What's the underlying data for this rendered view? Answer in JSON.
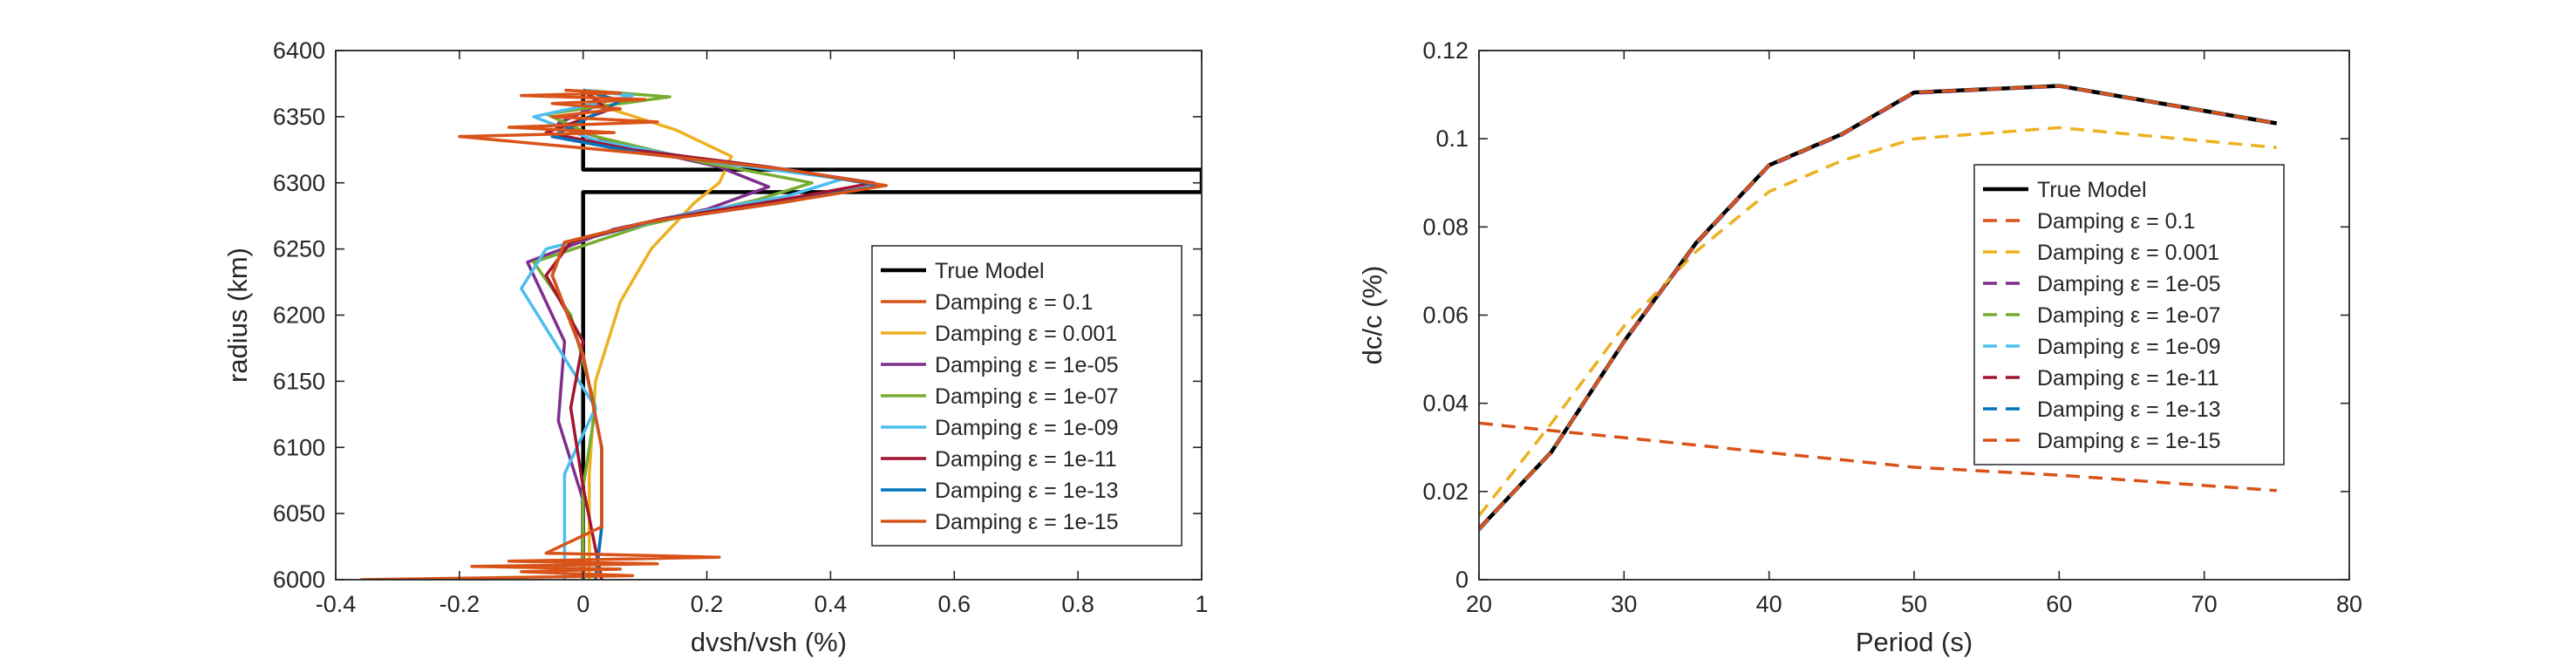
{
  "colors": {
    "black": "#000000",
    "orange": "#D95319",
    "yellow": "#EDB120",
    "purple": "#7E2F8E",
    "green": "#77AC30",
    "cyan": "#4DBEEE",
    "darkred": "#A2142F",
    "blue": "#0072BD"
  },
  "chart_data": [
    {
      "type": "line",
      "xlabel": "dvsh/vsh (%)",
      "ylabel": "radius (km)",
      "xlim": [
        -0.4,
        1
      ],
      "ylim": [
        6000,
        6400
      ],
      "xticks": [
        "-0.4",
        "-0.2",
        "0",
        "0.2",
        "0.4",
        "0.6",
        "0.8",
        "1"
      ],
      "yticks": [
        "6000",
        "6050",
        "6100",
        "6150",
        "6200",
        "6250",
        "6300",
        "6350",
        "6400"
      ],
      "legend_position": "lower-right",
      "grid": false,
      "series": [
        {
          "name": "True Model",
          "color": "black",
          "dash": "solid",
          "points": [
            [
              0,
              6000
            ],
            [
              0,
              6293
            ],
            [
              1,
              6293
            ],
            [
              1,
              6310
            ],
            [
              0,
              6310
            ],
            [
              0,
              6370
            ]
          ]
        },
        {
          "name": "Damping ε = 0.1",
          "color": "orange",
          "dash": "solid",
          "points": [
            [
              0.02,
              6000
            ],
            [
              0.03,
              6040
            ],
            [
              0.03,
              6100
            ],
            [
              0.0,
              6170
            ],
            [
              -0.05,
              6230
            ],
            [
              -0.03,
              6255
            ],
            [
              0.1,
              6270
            ],
            [
              0.32,
              6285
            ],
            [
              0.48,
              6298
            ],
            [
              0.33,
              6310
            ],
            [
              0.1,
              6322
            ],
            [
              -0.05,
              6335
            ],
            [
              0.02,
              6352
            ],
            [
              0.06,
              6362
            ],
            [
              0.0,
              6370
            ]
          ]
        },
        {
          "name": "Damping ε = 0.001",
          "color": "yellow",
          "dash": "solid",
          "points": [
            [
              0.01,
              6000
            ],
            [
              0.01,
              6080
            ],
            [
              0.02,
              6150
            ],
            [
              0.06,
              6210
            ],
            [
              0.11,
              6250
            ],
            [
              0.18,
              6285
            ],
            [
              0.22,
              6300
            ],
            [
              0.24,
              6320
            ],
            [
              0.15,
              6340
            ],
            [
              0.05,
              6355
            ],
            [
              0.0,
              6370
            ]
          ]
        },
        {
          "name": "Damping ε = 1e-05",
          "color": "purple",
          "dash": "solid",
          "points": [
            [
              0.0,
              6000
            ],
            [
              0.0,
              6060
            ],
            [
              -0.04,
              6120
            ],
            [
              -0.03,
              6180
            ],
            [
              -0.09,
              6240
            ],
            [
              0.05,
              6265
            ],
            [
              0.2,
              6280
            ],
            [
              0.3,
              6297
            ],
            [
              0.22,
              6312
            ],
            [
              0.05,
              6330
            ],
            [
              -0.04,
              6345
            ],
            [
              0.03,
              6360
            ],
            [
              0.0,
              6370
            ]
          ]
        },
        {
          "name": "Damping ε = 1e-07",
          "color": "green",
          "dash": "solid",
          "points": [
            [
              0.0,
              6000
            ],
            [
              0.0,
              6070
            ],
            [
              0.02,
              6130
            ],
            [
              -0.02,
              6200
            ],
            [
              -0.08,
              6240
            ],
            [
              0.1,
              6268
            ],
            [
              0.28,
              6287
            ],
            [
              0.37,
              6300
            ],
            [
              0.2,
              6315
            ],
            [
              0.02,
              6335
            ],
            [
              -0.06,
              6352
            ],
            [
              0.14,
              6365
            ],
            [
              0.0,
              6370
            ]
          ]
        },
        {
          "name": "Damping ε = 1e-09",
          "color": "cyan",
          "dash": "solid",
          "points": [
            [
              -0.03,
              6000
            ],
            [
              -0.03,
              6080
            ],
            [
              0.02,
              6130
            ],
            [
              -0.1,
              6220
            ],
            [
              -0.06,
              6250
            ],
            [
              0.15,
              6275
            ],
            [
              0.33,
              6290
            ],
            [
              0.42,
              6303
            ],
            [
              0.22,
              6315
            ],
            [
              0.02,
              6332
            ],
            [
              -0.08,
              6350
            ],
            [
              0.08,
              6366
            ],
            [
              0.0,
              6370
            ]
          ]
        },
        {
          "name": "Damping ε = 1e-11",
          "color": "darkred",
          "dash": "solid",
          "points": [
            [
              0.03,
              6000
            ],
            [
              0.0,
              6070
            ],
            [
              -0.02,
              6130
            ],
            [
              0.0,
              6180
            ],
            [
              -0.06,
              6230
            ],
            [
              -0.02,
              6255
            ],
            [
              0.12,
              6272
            ],
            [
              0.32,
              6287
            ],
            [
              0.47,
              6300
            ],
            [
              0.3,
              6312
            ],
            [
              0.08,
              6325
            ],
            [
              -0.06,
              6338
            ],
            [
              0.04,
              6355
            ],
            [
              0.0,
              6370
            ]
          ]
        },
        {
          "name": "Damping ε = 1e-13",
          "color": "blue",
          "dash": "solid",
          "points": [
            [
              0.02,
              6000
            ],
            [
              0.03,
              6040
            ],
            [
              0.03,
              6100
            ],
            [
              0.0,
              6170
            ],
            [
              -0.05,
              6230
            ],
            [
              -0.03,
              6255
            ],
            [
              0.1,
              6270
            ],
            [
              0.32,
              6285
            ],
            [
              0.48,
              6298
            ],
            [
              0.33,
              6310
            ],
            [
              0.1,
              6322
            ],
            [
              -0.05,
              6335
            ],
            [
              0.02,
              6352
            ],
            [
              0.06,
              6362
            ],
            [
              0.0,
              6370
            ]
          ]
        },
        {
          "name": "Damping ε = 1e-15",
          "color": "orange",
          "dash": "solid",
          "points": [
            [
              -0.36,
              6000
            ],
            [
              0.08,
              6003
            ],
            [
              -0.1,
              6006
            ],
            [
              0.06,
              6008
            ],
            [
              -0.18,
              6010
            ],
            [
              0.12,
              6012
            ],
            [
              -0.12,
              6014
            ],
            [
              0.22,
              6017
            ],
            [
              -0.06,
              6020
            ],
            [
              0.03,
              6040
            ],
            [
              0.03,
              6100
            ],
            [
              0.0,
              6170
            ],
            [
              -0.05,
              6230
            ],
            [
              -0.03,
              6255
            ],
            [
              0.1,
              6270
            ],
            [
              0.32,
              6285
            ],
            [
              0.49,
              6298
            ],
            [
              0.33,
              6310
            ],
            [
              0.1,
              6322
            ],
            [
              -0.2,
              6335
            ],
            [
              0.05,
              6338
            ],
            [
              -0.12,
              6342
            ],
            [
              0.12,
              6346
            ],
            [
              -0.05,
              6350
            ],
            [
              0.06,
              6356
            ],
            [
              -0.05,
              6360
            ],
            [
              0.1,
              6363
            ],
            [
              -0.1,
              6366
            ],
            [
              0.06,
              6368
            ],
            [
              -0.03,
              6370
            ]
          ]
        }
      ]
    },
    {
      "type": "line",
      "xlabel": "Period (s)",
      "ylabel": "dc/c (%)",
      "xlim": [
        20,
        80
      ],
      "ylim": [
        0,
        0.12
      ],
      "xticks": [
        "20",
        "30",
        "40",
        "50",
        "60",
        "70",
        "80"
      ],
      "yticks": [
        "0",
        "0.02",
        "0.04",
        "0.06",
        "0.08",
        "0.1",
        "0.12"
      ],
      "legend_position": "right",
      "grid": false,
      "x": [
        20,
        25,
        30,
        35,
        40,
        45,
        50,
        60,
        75
      ],
      "series": [
        {
          "name": "True Model",
          "color": "black",
          "dash": "solid",
          "values": [
            0.0115,
            0.029,
            0.054,
            0.0765,
            0.094,
            0.101,
            0.1105,
            0.112,
            0.1035
          ]
        },
        {
          "name": "Damping ε = 0.1",
          "color": "orange",
          "dash": "dashed",
          "values": [
            0.0355,
            0.0338,
            0.0322,
            0.0305,
            0.0288,
            0.0272,
            0.0255,
            0.0237,
            0.0202
          ]
        },
        {
          "name": "Damping ε = 0.001",
          "color": "yellow",
          "dash": "dashed",
          "values": [
            0.0145,
            0.0355,
            0.0575,
            0.0745,
            0.088,
            0.095,
            0.1,
            0.1025,
            0.098
          ]
        },
        {
          "name": "Damping ε = 1e-05",
          "color": "purple",
          "dash": "dashed",
          "values": [
            0.0112,
            0.029,
            0.0538,
            0.0762,
            0.0938,
            0.1008,
            0.1103,
            0.1119,
            0.1034
          ]
        },
        {
          "name": "Damping ε = 1e-07",
          "color": "green",
          "dash": "dashed",
          "values": [
            0.0113,
            0.029,
            0.054,
            0.0764,
            0.094,
            0.101,
            0.1105,
            0.112,
            0.1035
          ]
        },
        {
          "name": "Damping ε = 1e-09",
          "color": "cyan",
          "dash": "dashed",
          "values": [
            0.0114,
            0.029,
            0.054,
            0.0765,
            0.094,
            0.101,
            0.1105,
            0.112,
            0.1035
          ]
        },
        {
          "name": "Damping ε = 1e-11",
          "color": "darkred",
          "dash": "dashed",
          "values": [
            0.0115,
            0.029,
            0.054,
            0.0765,
            0.094,
            0.101,
            0.1105,
            0.112,
            0.1035
          ]
        },
        {
          "name": "Damping ε = 1e-13",
          "color": "blue",
          "dash": "dashed",
          "values": [
            0.0115,
            0.029,
            0.054,
            0.0765,
            0.094,
            0.101,
            0.1105,
            0.112,
            0.1035
          ]
        },
        {
          "name": "Damping ε = 1e-15",
          "color": "orange",
          "dash": "dashed",
          "values": [
            0.0115,
            0.029,
            0.054,
            0.0765,
            0.094,
            0.101,
            0.1105,
            0.112,
            0.1035
          ]
        }
      ]
    }
  ]
}
